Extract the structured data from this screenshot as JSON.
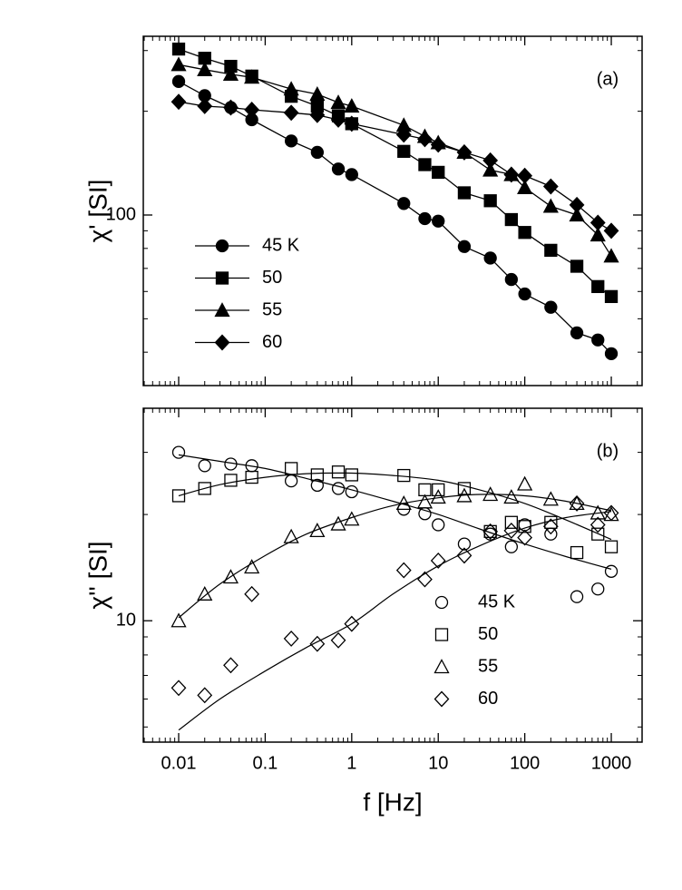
{
  "chart_data": [
    {
      "type": "line",
      "label": "(a)",
      "ylabel": "χ' [SI]",
      "log_x": true,
      "log_y": true,
      "legend": "lower left",
      "x": [
        0.01,
        0.02,
        0.04,
        0.07,
        0.2,
        0.4,
        0.7,
        1,
        4,
        7,
        10,
        20,
        40,
        70,
        100,
        200,
        400,
        700,
        1000
      ],
      "xlim": [
        0.0039,
        2270
      ],
      "xticks": [
        0.01,
        0.1,
        1,
        10,
        100,
        1000
      ],
      "minor_xticks": [
        0.004,
        0.005,
        0.006,
        0.007,
        0.008,
        0.009,
        0.02,
        0.03,
        0.04,
        0.05,
        0.06,
        0.07,
        0.08,
        0.09,
        0.2,
        0.3,
        0.4,
        0.5,
        0.6,
        0.7,
        0.8,
        0.9,
        2,
        3,
        4,
        5,
        6,
        7,
        8,
        9,
        20,
        30,
        40,
        50,
        60,
        70,
        80,
        90,
        200,
        300,
        400,
        500,
        600,
        700,
        800,
        900,
        2000
      ],
      "ylim": [
        32,
        330
      ],
      "yticks": [
        100
      ],
      "minor_yticks": [
        40,
        50,
        60,
        70,
        80,
        90,
        200,
        300
      ],
      "series": [
        {
          "name": "45 K",
          "color": "#000000",
          "marker": "circle",
          "filled": true,
          "values": [
            244,
            222,
            205,
            189,
            164,
            152,
            136,
            131,
            108,
            97.6,
            96,
            81,
            75,
            65,
            59,
            54,
            45.5,
            43.4,
            39.6
          ]
        },
        {
          "name": "50",
          "color": "#000000",
          "marker": "square",
          "filled": true,
          "values": [
            303,
            285,
            270,
            253,
            221,
            207,
            194,
            184,
            153,
            140,
            133,
            116,
            110,
            97,
            89,
            79,
            71,
            62,
            58
          ]
        },
        {
          "name": "55",
          "color": "#000000",
          "marker": "triangle",
          "filled": true,
          "values": [
            273,
            264,
            256,
            251,
            232,
            224,
            212,
            207,
            182,
            169,
            162,
            152,
            135,
            131,
            120,
            106,
            100,
            87.5,
            76
          ]
        },
        {
          "name": "60",
          "color": "#000000",
          "marker": "diamond",
          "filled": true,
          "values": [
            213,
            207,
            205,
            202,
            198,
            195,
            189,
            184,
            171,
            166,
            160,
            152,
            144,
            131,
            130,
            121,
            107,
            95,
            90
          ]
        }
      ]
    },
    {
      "type": "scatter",
      "label": "(b)",
      "ylabel": "χ'' [SI]",
      "xlabel": "f [Hz]",
      "log_x": true,
      "log_y": true,
      "legend": "lower right",
      "x": [
        0.01,
        0.02,
        0.04,
        0.07,
        0.2,
        0.4,
        0.7,
        1,
        4,
        7,
        10,
        20,
        40,
        70,
        100,
        200,
        400,
        700,
        1000
      ],
      "fit_x": [
        0.01,
        0.03,
        0.1,
        0.3,
        1,
        3,
        10,
        30,
        100,
        300,
        1000
      ],
      "xlim": [
        0.0039,
        2270
      ],
      "xticks": [
        0.01,
        0.1,
        1,
        10,
        100,
        1000
      ],
      "minor_xticks": [
        0.004,
        0.005,
        0.006,
        0.007,
        0.008,
        0.009,
        0.02,
        0.03,
        0.04,
        0.05,
        0.06,
        0.07,
        0.08,
        0.09,
        0.2,
        0.3,
        0.4,
        0.5,
        0.6,
        0.7,
        0.8,
        0.9,
        2,
        3,
        4,
        5,
        6,
        7,
        8,
        9,
        20,
        30,
        40,
        50,
        60,
        70,
        80,
        90,
        200,
        300,
        400,
        500,
        600,
        700,
        800,
        900,
        2000
      ],
      "ylim": [
        4.53,
        40
      ],
      "yticks": [
        10
      ],
      "minor_yticks": [
        5,
        6,
        7,
        8,
        9,
        20,
        30
      ],
      "series": [
        {
          "name": "45 K",
          "color": "#000000",
          "marker": "circle",
          "filled": false,
          "values": [
            30,
            27.5,
            27.8,
            27.5,
            24.9,
            24.2,
            23.7,
            23.2,
            20.7,
            20.1,
            18.7,
            16.5,
            17.6,
            16.2,
            18.7,
            17.6,
            11.7,
            12.3,
            13.8
          ],
          "fit_values": [
            29.5,
            28.3,
            27,
            25.3,
            23.5,
            21.8,
            20,
            18.2,
            16.5,
            15.2,
            14.0
          ]
        },
        {
          "name": "50",
          "color": "#000000",
          "marker": "square",
          "filled": false,
          "values": [
            22.6,
            23.7,
            25,
            25.5,
            27,
            25.9,
            26.4,
            25.9,
            25.8,
            23.5,
            23.5,
            23.7,
            17.9,
            19,
            18.5,
            19,
            15.6,
            17.6,
            16.2
          ],
          "fit_values": [
            22.6,
            24.3,
            25.5,
            26.1,
            26.2,
            25.8,
            25,
            23.5,
            21.5,
            19.3,
            17
          ]
        },
        {
          "name": "55",
          "color": "#000000",
          "marker": "triangle",
          "filled": false,
          "values": [
            10,
            11.9,
            13.3,
            14.2,
            17.3,
            18,
            18.8,
            19.4,
            21.5,
            21.7,
            22.4,
            22.6,
            22.8,
            22.4,
            24.4,
            22.1,
            21.5,
            20.2,
            20
          ],
          "fit_values": [
            10.2,
            12.7,
            15.3,
            17.6,
            19.6,
            21.2,
            22.3,
            22.8,
            22.6,
            21.8,
            20.5
          ]
        },
        {
          "name": "60",
          "color": "#000000",
          "marker": "diamond",
          "filled": false,
          "values": [
            6.45,
            6.15,
            7.48,
            11.9,
            8.9,
            8.6,
            8.8,
            9.8,
            13.9,
            13.1,
            14.8,
            15.3,
            17.9,
            18,
            17.2,
            18.5,
            21.5,
            18.7,
            20.2
          ],
          "fit_values": [
            4.9,
            6.0,
            7.2,
            8.4,
            9.8,
            11.9,
            14.3,
            16.3,
            18.3,
            19.6,
            20.4
          ]
        }
      ]
    }
  ]
}
